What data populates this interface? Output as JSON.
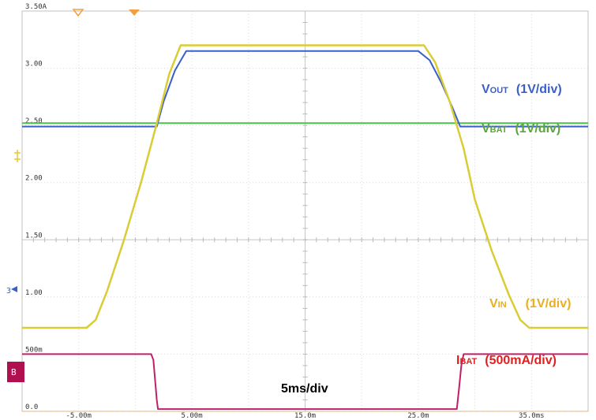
{
  "chart_data": {
    "type": "line",
    "title": "",
    "xlabel": "5ms/div",
    "ylabel": "",
    "xlim": [
      -10,
      40
    ],
    "ylim": [
      0.0,
      3.5
    ],
    "x_tick_labels": [
      {
        "x": -5,
        "label": "-5.00m"
      },
      {
        "x": 5,
        "label": "5.00m"
      },
      {
        "x": 15,
        "label": "15.0m"
      },
      {
        "x": 25,
        "label": "25.0m"
      },
      {
        "x": 35,
        "label": "35.0ms"
      }
    ],
    "y_tick_labels": [
      {
        "y": 3.5,
        "label": "3.50A"
      },
      {
        "y": 3.0,
        "label": "3.00"
      },
      {
        "y": 2.5,
        "label": "2.50"
      },
      {
        "y": 2.0,
        "label": "2.00"
      },
      {
        "y": 1.5,
        "label": "1.50"
      },
      {
        "y": 1.0,
        "label": "1.00"
      },
      {
        "y": 0.5,
        "label": "500m"
      },
      {
        "y": 0.0,
        "label": "0.0"
      }
    ],
    "grid": true,
    "series": [
      {
        "name": "VOUT (1V/div)",
        "color": "#3b5fc9",
        "x": [
          -10,
          1.9,
          2.5,
          3.5,
          4.5,
          25.0,
          26.0,
          27.0,
          28.0,
          28.7,
          40
        ],
        "y": [
          2.49,
          2.49,
          2.71,
          2.98,
          3.15,
          3.15,
          3.07,
          2.88,
          2.66,
          2.49,
          2.49
        ]
      },
      {
        "name": "VBAT (1V/div)",
        "color": "#4cc24c",
        "x": [
          -10,
          40
        ],
        "y": [
          2.52,
          2.52
        ]
      },
      {
        "name": "VIN (1V/div)",
        "color": "#d9cc35",
        "x": [
          -10,
          -4.3,
          -3.5,
          -2.5,
          -1.0,
          0.5,
          1.8,
          3.0,
          4.0,
          25.5,
          26.5,
          27.8,
          29.0,
          30.0,
          31.5,
          33.0,
          34.0,
          34.8,
          40
        ],
        "y": [
          0.73,
          0.73,
          0.8,
          1.05,
          1.5,
          2.0,
          2.48,
          2.95,
          3.2,
          3.2,
          3.05,
          2.7,
          2.3,
          1.85,
          1.4,
          1.02,
          0.8,
          0.73,
          0.73
        ]
      },
      {
        "name": "IBAT (500mA/div)",
        "color": "#c0206a",
        "x": [
          -10,
          1.4,
          1.6,
          1.9,
          2.0,
          28.4,
          28.6,
          28.8,
          29.0,
          40
        ],
        "y": [
          0.5,
          0.5,
          0.45,
          0.1,
          0.02,
          0.02,
          0.2,
          0.4,
          0.5,
          0.5
        ]
      }
    ],
    "annotations": {
      "vout_main": "V",
      "vout_sub": "OUT",
      "vout_div": "(1V/div)",
      "vbat_main": "V",
      "vbat_sub": "BAT",
      "vbat_div": "(1V/div)",
      "vin_main": "V",
      "vin_sub": "IN",
      "vin_div": "(1V/div)",
      "ibat_main": "I",
      "ibat_sub": "BAT",
      "ibat_div": "(500mA/div)",
      "timebase": "5ms/div"
    },
    "channel_markers": [
      "3",
      "B"
    ]
  }
}
